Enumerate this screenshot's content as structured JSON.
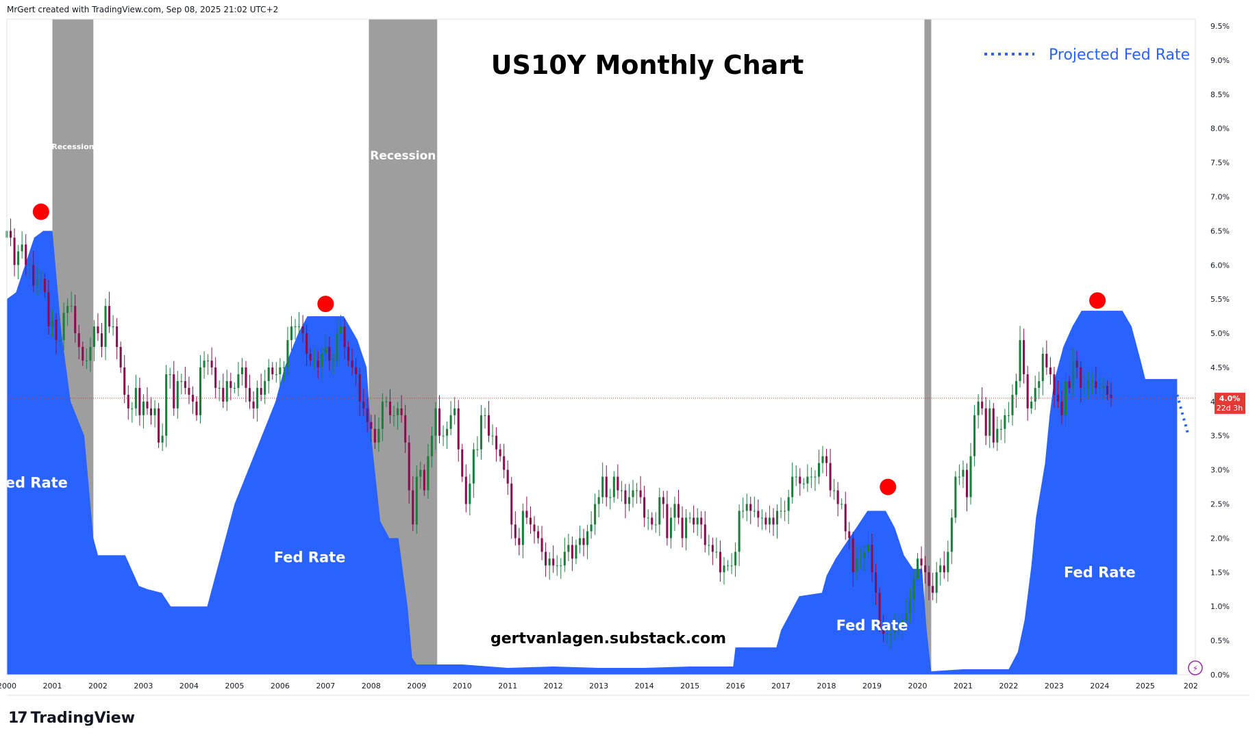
{
  "header": {
    "attribution": "MrGert created with TradingView.com, Sep 08, 2025 21:02 UTC+2"
  },
  "branding": {
    "logo_mark": "17",
    "logo_text": "TradingView",
    "website": "gertvanlagen.substack.com"
  },
  "colors": {
    "fed": "#2962ff",
    "recession": "#9e9e9e",
    "up": "#26a69a",
    "down": "#880e4f",
    "candle_up": "#1b7f3b",
    "peak": "#ff0000",
    "price_line": "#d32f2f",
    "projection": "#2962ff"
  },
  "chart_data": {
    "type": "area",
    "title": "US10Y Monthly Chart",
    "xlabel": "",
    "ylabel": "",
    "x_range": [
      2000.0,
      2026.1
    ],
    "ylim": [
      0,
      9.6
    ],
    "x_tick_labels": [
      "2000",
      "2001",
      "2002",
      "2003",
      "2004",
      "2005",
      "2006",
      "2007",
      "2008",
      "2009",
      "2010",
      "2011",
      "2012",
      "2013",
      "2014",
      "2015",
      "2016",
      "2017",
      "2018",
      "2019",
      "2020",
      "2021",
      "2022",
      "2023",
      "2024",
      "2025",
      "202"
    ],
    "y_tick_labels": [
      "0.0%",
      "0.5%",
      "1.0%",
      "1.5%",
      "2.0%",
      "2.5%",
      "3.0%",
      "3.5%",
      "4.0%",
      "4.5%",
      "5.0%",
      "5.5%",
      "6.0%",
      "6.5%",
      "7.0%",
      "7.5%",
      "8.0%",
      "8.5%",
      "9.0%",
      "9.5%"
    ],
    "y_tick_values": [
      0,
      0.5,
      1,
      1.5,
      2,
      2.5,
      3,
      3.5,
      4,
      4.5,
      5,
      5.5,
      6,
      6.5,
      7,
      7.5,
      8,
      8.5,
      9,
      9.5
    ],
    "fed_rate": {
      "name": "Fed Rate",
      "x": [
        2000.0,
        2000.2,
        2000.4,
        2000.6,
        2000.8,
        2001.0,
        2001.2,
        2001.4,
        2001.7,
        2001.9,
        2002.0,
        2002.3,
        2002.6,
        2002.9,
        2003.1,
        2003.4,
        2003.6,
        2004.0,
        2004.4,
        2004.5,
        2004.8,
        2005.0,
        2005.3,
        2005.6,
        2005.9,
        2006.1,
        2006.4,
        2006.6,
        2007.0,
        2007.4,
        2007.7,
        2007.9,
        2008.0,
        2008.2,
        2008.4,
        2008.6,
        2008.8,
        2008.9,
        2009.0,
        2009.5,
        2010.0,
        2011.0,
        2012.0,
        2013.0,
        2014.0,
        2015.0,
        2015.95,
        2016.0,
        2016.9,
        2017.0,
        2017.2,
        2017.4,
        2017.9,
        2018.0,
        2018.2,
        2018.4,
        2018.7,
        2018.9,
        2019.3,
        2019.5,
        2019.7,
        2019.9,
        2020.1,
        2020.2,
        2020.3,
        2021.0,
        2022.0,
        2022.2,
        2022.35,
        2022.5,
        2022.6,
        2022.8,
        2022.9,
        2023.0,
        2023.2,
        2023.4,
        2023.6,
        2024.5,
        2024.7,
        2024.9,
        2025.0,
        2025.7
      ],
      "values": [
        5.5,
        5.6,
        6.0,
        6.4,
        6.5,
        6.5,
        5.0,
        4.0,
        3.5,
        2.0,
        1.75,
        1.75,
        1.75,
        1.3,
        1.25,
        1.2,
        1.0,
        1.0,
        1.0,
        1.25,
        2.0,
        2.5,
        3.0,
        3.5,
        4.0,
        4.5,
        5.0,
        5.25,
        5.25,
        5.25,
        4.9,
        4.5,
        3.5,
        2.25,
        2.0,
        2.0,
        1.0,
        0.25,
        0.15,
        0.15,
        0.15,
        0.1,
        0.12,
        0.1,
        0.1,
        0.12,
        0.12,
        0.4,
        0.4,
        0.65,
        0.9,
        1.15,
        1.2,
        1.45,
        1.7,
        1.9,
        2.2,
        2.4,
        2.4,
        2.15,
        1.75,
        1.55,
        1.55,
        0.65,
        0.05,
        0.08,
        0.08,
        0.33,
        0.8,
        1.6,
        2.3,
        3.1,
        3.8,
        4.3,
        4.8,
        5.1,
        5.33,
        5.33,
        5.1,
        4.6,
        4.33,
        4.33
      ]
    },
    "recessions": [
      {
        "start": 2001.0,
        "end": 2001.9,
        "label": "Recession"
      },
      {
        "start": 2007.95,
        "end": 2009.45,
        "label": "Recession"
      },
      {
        "start": 2020.15,
        "end": 2020.3
      }
    ],
    "us10y_close": {
      "start": 2000.0,
      "step": 0.0833333,
      "values": [
        6.5,
        6.4,
        6.0,
        6.2,
        6.3,
        6.0,
        6.0,
        5.7,
        5.8,
        5.8,
        5.6,
        5.1,
        5.2,
        4.9,
        4.9,
        5.3,
        5.4,
        5.4,
        5.0,
        4.8,
        4.6,
        4.6,
        4.8,
        5.1,
        5.0,
        4.8,
        5.4,
        5.1,
        5.1,
        4.8,
        4.5,
        4.1,
        3.9,
        3.9,
        4.2,
        3.8,
        4.0,
        3.9,
        3.8,
        3.9,
        3.4,
        3.5,
        4.4,
        4.4,
        3.9,
        4.3,
        4.3,
        4.2,
        4.1,
        4.0,
        3.8,
        4.5,
        4.6,
        4.6,
        4.5,
        4.2,
        4.2,
        4.0,
        4.3,
        4.2,
        4.2,
        4.4,
        4.5,
        4.2,
        4.0,
        3.9,
        4.2,
        4.1,
        4.3,
        4.5,
        4.4,
        4.4,
        4.5,
        4.5,
        4.9,
        5.1,
        5.1,
        5.1,
        5.0,
        4.7,
        4.6,
        4.6,
        4.5,
        4.7,
        4.8,
        4.6,
        4.6,
        5.0,
        5.1,
        4.8,
        4.6,
        4.5,
        4.4,
        4.0,
        3.9,
        3.7,
        3.6,
        3.4,
        3.6,
        4.0,
        4.0,
        3.8,
        3.8,
        3.9,
        3.8,
        3.4,
        2.7,
        2.2,
        2.9,
        3.0,
        2.7,
        3.2,
        3.5,
        3.9,
        3.5,
        3.5,
        3.6,
        3.8,
        3.9,
        3.3,
        2.9,
        2.5,
        2.8,
        3.3,
        3.3,
        3.8,
        3.8,
        3.5,
        3.5,
        3.3,
        3.2,
        3.0,
        2.8,
        2.2,
        2.0,
        1.9,
        2.4,
        2.3,
        2.2,
        2.1,
        2.0,
        1.8,
        1.6,
        1.7,
        1.6,
        1.6,
        1.6,
        1.8,
        1.9,
        1.7,
        1.9,
        2.0,
        1.9,
        2.1,
        2.2,
        2.5,
        2.6,
        2.9,
        2.6,
        2.6,
        2.9,
        2.7,
        2.7,
        2.5,
        2.6,
        2.7,
        2.7,
        2.6,
        2.3,
        2.3,
        2.2,
        2.2,
        2.6,
        2.5,
        2.0,
        2.3,
        2.5,
        2.3,
        2.0,
        2.3,
        2.3,
        2.2,
        2.3,
        2.2,
        1.9,
        1.9,
        1.8,
        1.8,
        1.5,
        1.6,
        1.6,
        1.6,
        1.8,
        2.4,
        2.4,
        2.5,
        2.4,
        2.4,
        2.3,
        2.3,
        2.2,
        2.3,
        2.2,
        2.4,
        2.4,
        2.4,
        2.6,
        2.9,
        2.9,
        2.8,
        2.8,
        2.9,
        2.9,
        2.9,
        3.1,
        3.2,
        3.1,
        2.7,
        2.7,
        2.5,
        2.5,
        2.1,
        2.0,
        1.5,
        1.7,
        1.7,
        1.8,
        1.9,
        1.5,
        1.2,
        0.7,
        0.6,
        0.6,
        0.6,
        0.7,
        0.7,
        0.8,
        0.9,
        1.1,
        1.4,
        1.7,
        1.6,
        1.5,
        1.3,
        1.2,
        1.5,
        1.6,
        1.5,
        1.8,
        2.3,
        2.9,
        2.9,
        3.0,
        2.6,
        3.2,
        3.8,
        4.0,
        3.9,
        3.5,
        3.9,
        3.4,
        3.6,
        3.6,
        3.8,
        3.8,
        4.1,
        4.3,
        4.9,
        4.4,
        3.9,
        4.0,
        4.2,
        4.3,
        4.7,
        4.5,
        4.4,
        4.1,
        4.0,
        3.8,
        4.3,
        4.2,
        4.6,
        4.5,
        4.2,
        4.2,
        4.3,
        4.3,
        4.2,
        4.2,
        4.23,
        4.1,
        4.05
      ]
    },
    "peaks": [
      {
        "x": 2000.75,
        "y": 6.78
      },
      {
        "x": 2007.0,
        "y": 5.43
      },
      {
        "x": 2019.35,
        "y": 2.75
      },
      {
        "x": 2023.95,
        "y": 5.48
      }
    ],
    "current_price": {
      "value": 4.05,
      "label": "4.0%",
      "countdown": "22d 3h"
    },
    "projection": {
      "name": "Projected Fed Rate",
      "x": [
        2025.7,
        2025.95
      ],
      "values": [
        4.1,
        3.5
      ]
    },
    "annotations": [
      {
        "text": "Fed Rate",
        "x": 2000.55,
        "y": 2.74
      },
      {
        "text": "Fed Rate",
        "x": 2006.65,
        "y": 1.65
      },
      {
        "text": "Fed Rate",
        "x": 2019.0,
        "y": 0.65
      },
      {
        "text": "Fed Rate",
        "x": 2024.0,
        "y": 1.43
      }
    ],
    "legend_position": "top-right"
  }
}
